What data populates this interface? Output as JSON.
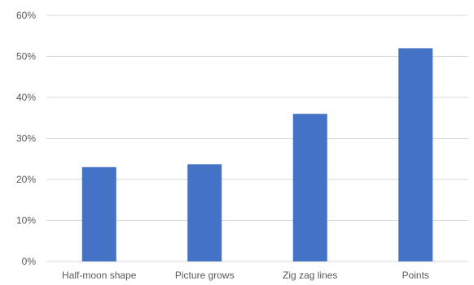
{
  "chart_data": {
    "type": "bar",
    "categories": [
      "Half-moon shape",
      "Picture grows",
      "Zig zag lines",
      "Points"
    ],
    "values": [
      23,
      23.7,
      36,
      52
    ],
    "ylim": [
      0,
      60
    ],
    "yticks": [
      0,
      10,
      20,
      30,
      40,
      50,
      60
    ],
    "ytick_labels": [
      "0%",
      "10%",
      "20%",
      "30%",
      "40%",
      "50%",
      "60%"
    ],
    "title": "",
    "xlabel": "",
    "ylabel": "",
    "grid": true,
    "legend": "none",
    "colors": {
      "bar": "#4472C4",
      "grid": "#D9D9D9",
      "text": "#595959"
    }
  }
}
